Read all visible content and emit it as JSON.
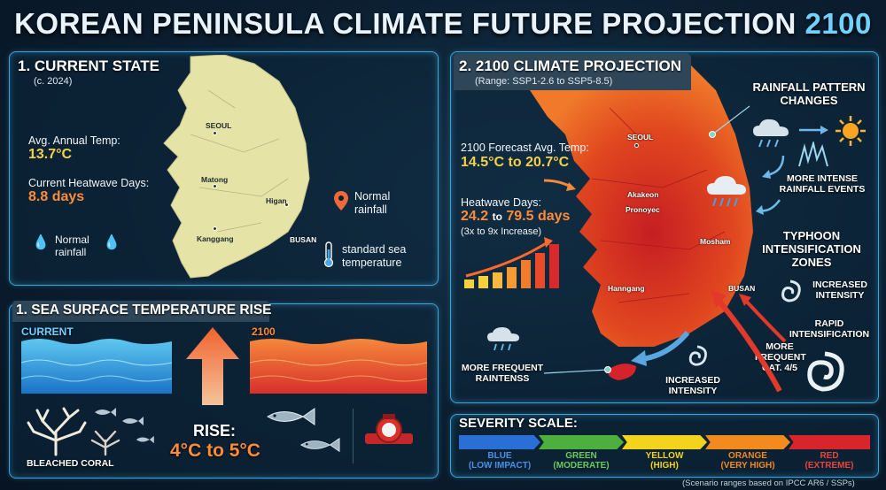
{
  "title": {
    "main": "KOREAN PENINSULA CLIMATE FUTURE PROJECTION",
    "year": "2100"
  },
  "current": {
    "heading": "1. CURRENT STATE",
    "sub": "(c. 2024)",
    "temp_label": "Avg. Annual Temp:",
    "temp_value": "13.7°C",
    "heat_label": "Current Heatwave Days:",
    "heat_value": "8.8 days",
    "rain_label": "Normal rainfall",
    "rain_label2": "Normal rainfall",
    "sea_label": "standard sea temperature",
    "cities": [
      "SEOUL",
      "Matong",
      "Higan",
      "Kanggang",
      "BUSAN"
    ]
  },
  "sea": {
    "heading": "1. SEA SURFACE TEMPERATURE RISE",
    "current_label": "CURRENT",
    "future_label": "2100",
    "rise_label": "RISE:",
    "rise_value": "4°C to 5°C",
    "coral_label": "BLEACHED CORAL"
  },
  "projection": {
    "heading": "2. 2100 CLIMATE PROJECTION",
    "sub": "(Range: SSP1-2.6 to SSP5-8.5)",
    "temp_label": "2100 Forecast Avg. Temp:",
    "temp_value": "14.5°C to 20.7°C",
    "heat_label": "Heatwave Days:",
    "heat_low": "24.2",
    "heat_to": "to",
    "heat_high": "79.5 days",
    "heat_note": "(3x to 9x Increase)",
    "rainfall_heading": "RAINFALL PATTERN CHANGES",
    "intense_rain": "MORE INTENSE RAINFALL EVENTS",
    "typhoon_heading": "TYPHOON INTENSIFICATION ZONES",
    "increased_intensity": "INCREASED INTENSITY",
    "rapid": "RAPID INTENSIFICATION",
    "more_frequent_cat": "MORE FREQUENT CAT. 4/5",
    "more_frequent_rain": "MORE FREQUENT RAINTENSS",
    "increased_intensity2": "INCREASED INTENSITY",
    "cities": [
      "SEOUL",
      "Akakeon",
      "Pronoyec",
      "Mosham",
      "Hanngang",
      "BUSAN"
    ]
  },
  "severity": {
    "heading": "SEVERITY SCALE:",
    "levels": [
      {
        "name": "BLUE",
        "desc": "(LOW IMPACT)",
        "color": "#2a6fd6"
      },
      {
        "name": "GREEN",
        "desc": "(MODERATE)",
        "color": "#4caf3e"
      },
      {
        "name": "YELLOW",
        "desc": "(HIGH)",
        "color": "#f3d31c"
      },
      {
        "name": "ORANGE",
        "desc": "(VERY HIGH)",
        "color": "#f28a1e"
      },
      {
        "name": "RED",
        "desc": "(EXTREME)",
        "color": "#d8252b"
      }
    ]
  },
  "footnote": "(Scenario ranges based on IPCC AR6 / SSPs)"
}
